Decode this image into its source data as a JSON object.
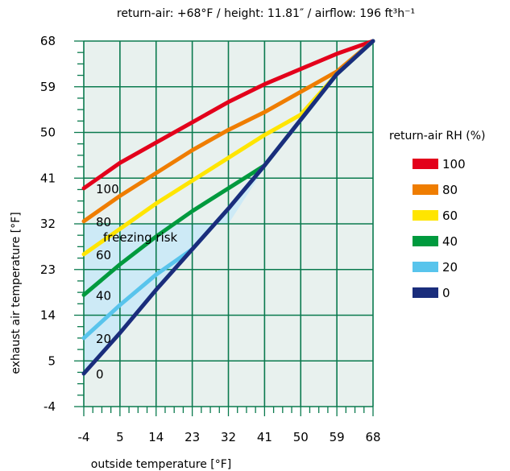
{
  "chart_data": {
    "type": "line",
    "title": "return-air: +68°F / height: 11.81″ / airflow: 196 ft³h⁻¹",
    "xlabel": "outside temperature [°F]",
    "ylabel": "exhaust air temperature [°F]",
    "x_ticks": [
      -4,
      5,
      14,
      23,
      32,
      41,
      50,
      59,
      68
    ],
    "y_ticks": [
      -4,
      5,
      14,
      23,
      32,
      41,
      50,
      59,
      68
    ],
    "xlim": [
      -4,
      68
    ],
    "ylim": [
      -4,
      68
    ],
    "grid": true,
    "legend_title": "return-air RH (%)",
    "legend_position": "right",
    "zone": {
      "label": "freezing risk",
      "color": "#cdeaf6",
      "points": [
        [
          -4,
          32
        ],
        [
          23,
          32
        ],
        [
          32,
          32
        ],
        [
          41,
          43
        ],
        [
          23,
          27
        ],
        [
          5,
          10
        ],
        [
          -4,
          3
        ],
        [
          -4,
          32
        ]
      ]
    },
    "series": [
      {
        "name": "100",
        "label": "100",
        "color": "#e3001b",
        "x": [
          -4,
          5,
          14,
          23,
          32,
          41,
          50,
          59,
          68
        ],
        "y": [
          39,
          44,
          48,
          52,
          56,
          59.5,
          62.5,
          65.5,
          68
        ]
      },
      {
        "name": "80",
        "label": "80",
        "color": "#ef7d00",
        "x": [
          -4,
          5,
          14,
          23,
          32,
          41,
          50,
          59,
          68
        ],
        "y": [
          32.5,
          37.5,
          42,
          46.5,
          50.5,
          54,
          58,
          62,
          68
        ]
      },
      {
        "name": "60",
        "label": "60",
        "color": "#ffe500",
        "x": [
          -4,
          5,
          14,
          23,
          32,
          41,
          50,
          59,
          68
        ],
        "y": [
          26,
          31,
          36,
          40.5,
          45,
          49.5,
          53.5,
          61.5,
          68
        ]
      },
      {
        "name": "40",
        "label": "40",
        "color": "#009a3e",
        "x": [
          -4,
          5,
          14,
          23,
          32,
          41,
          50,
          59,
          68
        ],
        "y": [
          18,
          24,
          29.5,
          34.5,
          39,
          43.5,
          52.5,
          61.5,
          68
        ]
      },
      {
        "name": "20",
        "label": "20",
        "color": "#58c4ec",
        "x": [
          -4,
          5,
          14,
          23,
          32,
          41,
          50,
          59,
          68
        ],
        "y": [
          9.5,
          16,
          22,
          27,
          35,
          43.5,
          52.5,
          61.5,
          68
        ]
      },
      {
        "name": "0",
        "label": "0",
        "color": "#1a2d7c",
        "x": [
          -4,
          5,
          14,
          23,
          32,
          41,
          50,
          59,
          68
        ],
        "y": [
          2.5,
          10.5,
          19,
          27,
          35,
          43.5,
          52.5,
          61.5,
          68
        ]
      }
    ]
  }
}
